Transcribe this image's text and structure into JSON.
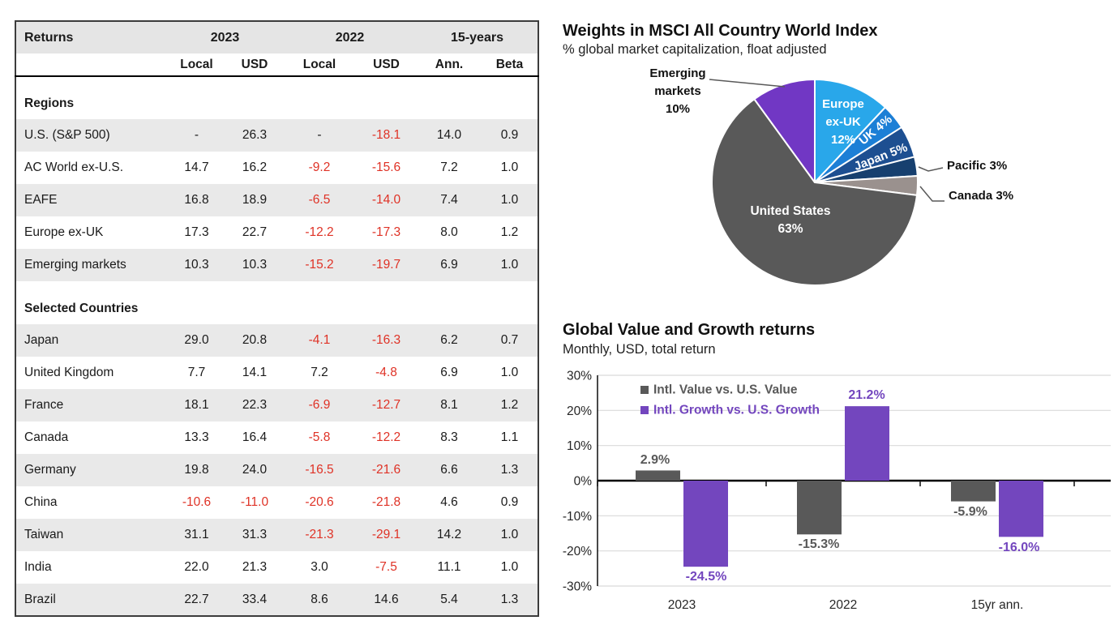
{
  "page": {
    "background": "#FFFFFF"
  },
  "colors": {
    "negative_red": "#DF3226",
    "row_alt_gray": "#E9E9E9",
    "header_gray": "#E5E5E5",
    "value_gray": "#595959",
    "growth_purple": "#7346BE",
    "gridline": "#D9D9D9"
  },
  "chart_data": [
    {
      "id": "returns-table",
      "type": "table",
      "title": "Returns",
      "column_groups": [
        {
          "label": "2023",
          "span": 2
        },
        {
          "label": "2022",
          "span": 2
        },
        {
          "label": "15-years",
          "span": 2
        }
      ],
      "sub_headers": [
        "Local",
        "USD",
        "Local",
        "USD",
        "Ann.",
        "Beta"
      ],
      "sections": [
        {
          "label": "Regions",
          "rows": [
            {
              "label": "U.S. (S&P 500)",
              "values": [
                "-",
                "26.3",
                "-",
                "-18.1",
                "14.0",
                "0.9"
              ]
            },
            {
              "label": "AC World ex-U.S.",
              "values": [
                "14.7",
                "16.2",
                "-9.2",
                "-15.6",
                "7.2",
                "1.0"
              ]
            },
            {
              "label": "EAFE",
              "values": [
                "16.8",
                "18.9",
                "-6.5",
                "-14.0",
                "7.4",
                "1.0"
              ]
            },
            {
              "label": "Europe ex-UK",
              "values": [
                "17.3",
                "22.7",
                "-12.2",
                "-17.3",
                "8.0",
                "1.2"
              ]
            },
            {
              "label": "Emerging markets",
              "values": [
                "10.3",
                "10.3",
                "-15.2",
                "-19.7",
                "6.9",
                "1.0"
              ]
            }
          ]
        },
        {
          "label": "Selected Countries",
          "rows": [
            {
              "label": "Japan",
              "values": [
                "29.0",
                "20.8",
                "-4.1",
                "-16.3",
                "6.2",
                "0.7"
              ]
            },
            {
              "label": "United Kingdom",
              "values": [
                "7.7",
                "14.1",
                "7.2",
                "-4.8",
                "6.9",
                "1.0"
              ]
            },
            {
              "label": "France",
              "values": [
                "18.1",
                "22.3",
                "-6.9",
                "-12.7",
                "8.1",
                "1.2"
              ]
            },
            {
              "label": "Canada",
              "values": [
                "13.3",
                "16.4",
                "-5.8",
                "-12.2",
                "8.3",
                "1.1"
              ]
            },
            {
              "label": "Germany",
              "values": [
                "19.8",
                "24.0",
                "-16.5",
                "-21.6",
                "6.6",
                "1.3"
              ]
            },
            {
              "label": "China",
              "values": [
                "-10.6",
                "-11.0",
                "-20.6",
                "-21.8",
                "4.6",
                "0.9"
              ]
            },
            {
              "label": "Taiwan",
              "values": [
                "31.1",
                "31.3",
                "-21.3",
                "-29.1",
                "14.2",
                "1.0"
              ]
            },
            {
              "label": "India",
              "values": [
                "22.0",
                "21.3",
                "3.0",
                "-7.5",
                "11.1",
                "1.0"
              ]
            },
            {
              "label": "Brazil",
              "values": [
                "22.7",
                "33.4",
                "8.6",
                "14.6",
                "5.4",
                "1.3"
              ]
            }
          ]
        }
      ]
    },
    {
      "id": "msci-weights-pie",
      "type": "pie",
      "title": "Weights in MSCI All Country World Index",
      "subtitle": "% global market capitalization, float adjusted",
      "unit": "%",
      "start_angle_deg": 0,
      "direction": "clockwise",
      "slices": [
        {
          "label": "Europe ex-UK",
          "value": 12,
          "color": "#29A7EA",
          "display": "Europe|ex-UK|12%",
          "placement": "inside"
        },
        {
          "label": "UK",
          "value": 4,
          "color": "#1C7FD6",
          "display": "UK 4%",
          "placement": "inside-rotated"
        },
        {
          "label": "Japan",
          "value": 5,
          "color": "#1D4F91",
          "display": "Japan 5%",
          "placement": "inside-rotated"
        },
        {
          "label": "Pacific",
          "value": 3,
          "color": "#17406F",
          "display": "Pacific 3%",
          "placement": "outside"
        },
        {
          "label": "Canada",
          "value": 3,
          "color": "#9A918E",
          "display": "Canada 3%",
          "placement": "outside"
        },
        {
          "label": "United States",
          "value": 63,
          "color": "#595959",
          "display": "United States|63%",
          "placement": "inside"
        },
        {
          "label": "Emerging markets",
          "value": 10,
          "color": "#7137C4",
          "display": "Emerging|markets|10%",
          "placement": "outside"
        }
      ]
    },
    {
      "id": "value-growth-bars",
      "type": "bar",
      "title": "Global Value and Growth returns",
      "subtitle": "Monthly, USD, total return",
      "categories": [
        "2023",
        "2022",
        "15yr ann."
      ],
      "series": [
        {
          "name": "Intl. Value vs. U.S. Value",
          "color": "#595959",
          "values": [
            2.9,
            -15.3,
            -5.9
          ],
          "labels": [
            "2.9%",
            "-15.3%",
            "-5.9%"
          ]
        },
        {
          "name": "Intl. Growth vs. U.S. Growth",
          "color": "#7346BE",
          "values": [
            -24.5,
            21.2,
            -16.0
          ],
          "labels": [
            "-24.5%",
            "21.2%",
            "-16.0%"
          ]
        }
      ],
      "ylim": [
        -30,
        30
      ],
      "ytick_step": 10,
      "ytick_labels": [
        "30%",
        "20%",
        "10%",
        "0%",
        "-10%",
        "-20%",
        "-30%"
      ],
      "grid": true,
      "legend_position": "top-left"
    }
  ]
}
